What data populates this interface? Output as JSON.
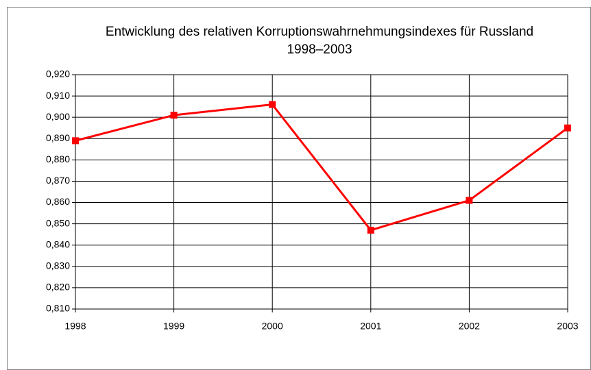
{
  "chart_data": {
    "type": "line",
    "title": "Entwicklung des relativen Korruptionswahrnehmungsindexes für Russland",
    "subtitle": "1998–2003",
    "categories": [
      "1998",
      "1999",
      "2000",
      "2001",
      "2002",
      "2003"
    ],
    "series": [
      {
        "name": "Russland",
        "color": "#ff0000",
        "values": [
          0.889,
          0.901,
          0.906,
          0.847,
          0.861,
          0.895
        ]
      }
    ],
    "ylim": [
      0.81,
      0.92
    ],
    "yticks": [
      {
        "value": 0.81,
        "label": "0,810"
      },
      {
        "value": 0.82,
        "label": "0,820"
      },
      {
        "value": 0.83,
        "label": "0,830"
      },
      {
        "value": 0.84,
        "label": "0,840"
      },
      {
        "value": 0.85,
        "label": "0,850"
      },
      {
        "value": 0.86,
        "label": "0,860"
      },
      {
        "value": 0.87,
        "label": "0,870"
      },
      {
        "value": 0.88,
        "label": "0,880"
      },
      {
        "value": 0.89,
        "label": "0,890"
      },
      {
        "value": 0.9,
        "label": "0,900"
      },
      {
        "value": 0.91,
        "label": "0,910"
      },
      {
        "value": 0.92,
        "label": "0,920"
      }
    ],
    "grid": true
  }
}
